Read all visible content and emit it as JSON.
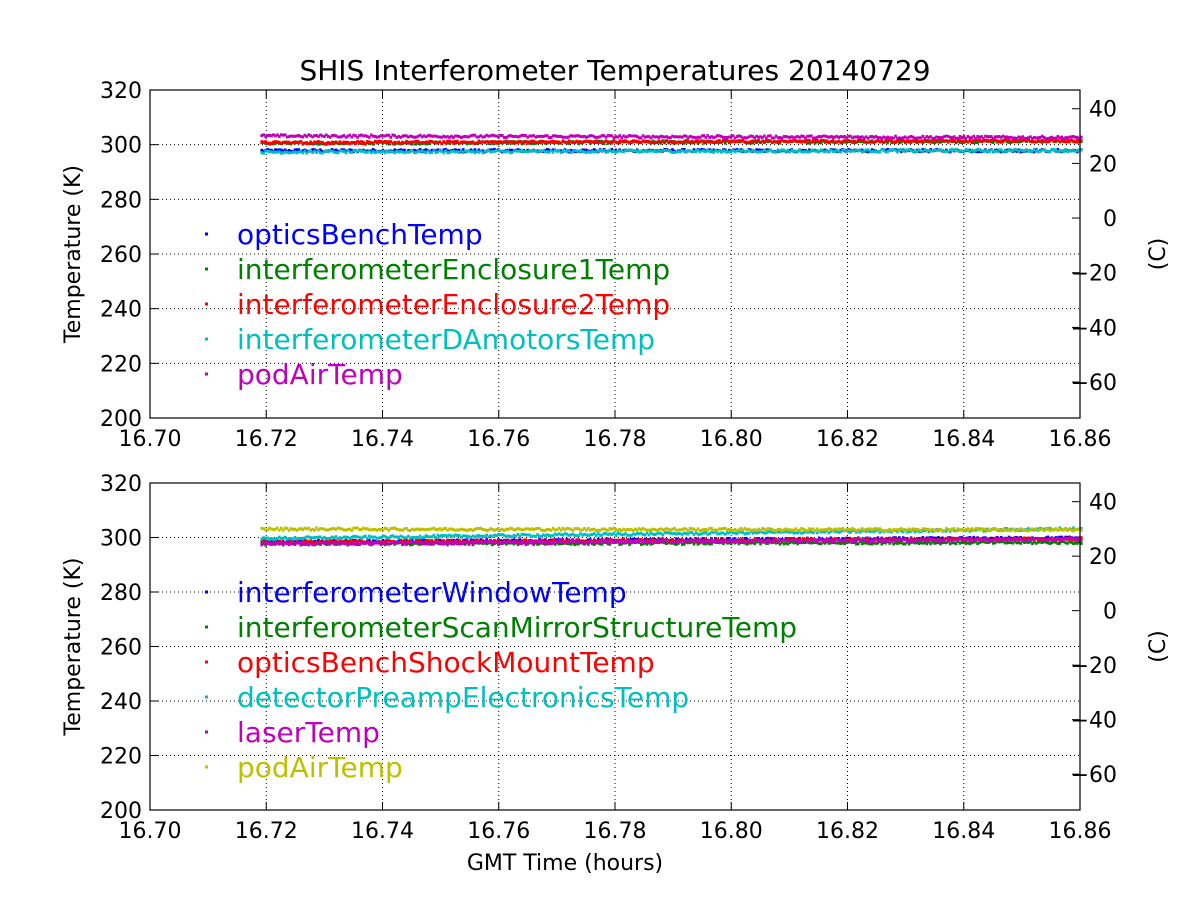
{
  "title": "SHIS Interferometer Temperatures 20140729",
  "chart_data": [
    {
      "type": "scatter",
      "title": "SHIS Interferometer Temperatures 20140729",
      "xlabel": "",
      "ylabel": "Temperature (K)",
      "y2label": "(C)",
      "xlim": [
        16.7,
        16.86
      ],
      "ylim": [
        200,
        320
      ],
      "y2lim": [
        -73.15,
        46.85
      ],
      "xticks": [
        "16.70",
        "16.72",
        "16.74",
        "16.76",
        "16.78",
        "16.80",
        "16.82",
        "16.84",
        "16.86"
      ],
      "yticks": [
        "200",
        "220",
        "240",
        "260",
        "280",
        "300",
        "320"
      ],
      "y2ticks": [
        "−60",
        "−40",
        "−20",
        "0",
        "20",
        "40"
      ],
      "grid": true,
      "legend_position": "center-left",
      "x_range": [
        16.719,
        16.86
      ],
      "series": [
        {
          "name": "opticsBenchTemp",
          "color": "#0000ff",
          "y_start": 297.8,
          "y_end": 297.8
        },
        {
          "name": "interferometerEnclosure1Temp",
          "color": "#008000",
          "y_start": 300.5,
          "y_end": 301.3
        },
        {
          "name": "interferometerEnclosure2Temp",
          "color": "#ff0000",
          "y_start": 300.7,
          "y_end": 301.5
        },
        {
          "name": "interferometerDAmotorsTemp",
          "color": "#00bfbf",
          "y_start": 297.3,
          "y_end": 297.9
        },
        {
          "name": "podAirTemp",
          "color": "#bf00bf",
          "y_start": 303.2,
          "y_end": 302.6
        }
      ]
    },
    {
      "type": "scatter",
      "title": "",
      "xlabel": "GMT Time (hours)",
      "ylabel": "Temperature (K)",
      "y2label": "(C)",
      "xlim": [
        16.7,
        16.86
      ],
      "ylim": [
        200,
        320
      ],
      "y2lim": [
        -73.15,
        46.85
      ],
      "xticks": [
        "16.70",
        "16.72",
        "16.74",
        "16.76",
        "16.78",
        "16.80",
        "16.82",
        "16.84",
        "16.86"
      ],
      "yticks": [
        "200",
        "220",
        "240",
        "260",
        "280",
        "300",
        "320"
      ],
      "y2ticks": [
        "−60",
        "−40",
        "−20",
        "0",
        "20",
        "40"
      ],
      "grid": true,
      "legend_position": "center-left",
      "x_range": [
        16.719,
        16.86
      ],
      "series": [
        {
          "name": "interferometerWindowTemp",
          "color": "#0000ff",
          "y_start": 298.4,
          "y_end": 299.8
        },
        {
          "name": "interferometerScanMirrorStructureTemp",
          "color": "#008000",
          "y_start": 297.6,
          "y_end": 298.2
        },
        {
          "name": "opticsBenchShockMountTemp",
          "color": "#ff0000",
          "y_start": 298.3,
          "y_end": 299.5
        },
        {
          "name": "detectorPreampElectronicsTemp",
          "color": "#00bfbf",
          "y_start": 299.6,
          "y_end": 303.2
        },
        {
          "name": "laserTemp",
          "color": "#bf00bf",
          "y_start": 297.7,
          "y_end": 299.3
        },
        {
          "name": "podAirTemp",
          "color": "#bfbf00",
          "y_start": 303.1,
          "y_end": 302.8
        }
      ]
    }
  ]
}
